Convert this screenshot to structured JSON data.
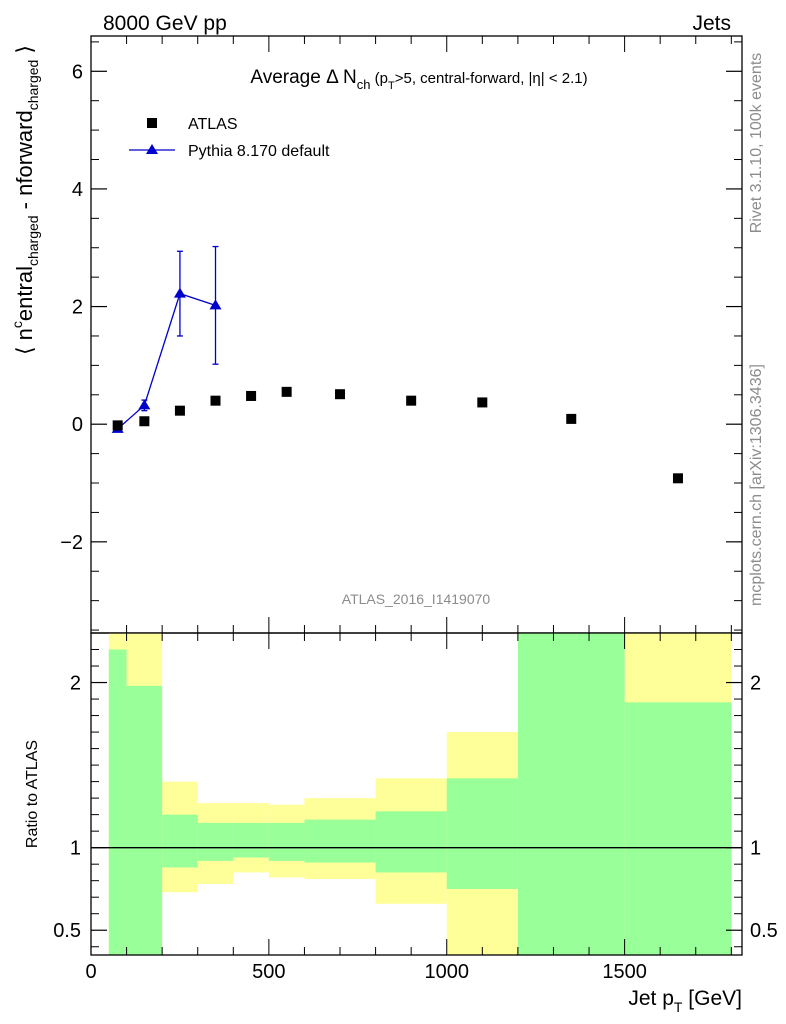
{
  "header": {
    "left": "8000 GeV pp",
    "right": "Jets"
  },
  "side_labels": {
    "rivet": "Rivet 3.1.10,  100k events",
    "mcplots": "mcplots.cern.ch [arXiv:1306.3436]"
  },
  "chart_data": [
    {
      "type": "scatter",
      "title_main": "Average Δ N",
      "title_sub": "ch",
      "title_rest": " (p",
      "title_sub2": "T",
      "title_tail": ">5, central-forward, |η| < 2.1)",
      "ylabel": "⟨ n^central_charged - n^forward_charged ⟩",
      "ylabel_parts": [
        "⟨ n",
        "c",
        "entral",
        "charged",
        " - n",
        "forward",
        "charged",
        " ⟩"
      ],
      "watermark": "ATLAS_2016_I1419070",
      "xlim": [
        0,
        1830
      ],
      "ylim": [
        -3.55,
        6.6
      ],
      "yticks": [
        -2,
        0,
        2,
        4,
        6
      ],
      "ytick_labels": [
        "−2",
        "0",
        "2",
        "4",
        "6"
      ],
      "legend_position": "top-left",
      "series": [
        {
          "name": "ATLAS",
          "marker": "square",
          "color": "#000000",
          "x": [
            75,
            150,
            250,
            350,
            450,
            550,
            700,
            900,
            1100,
            1350,
            1650
          ],
          "y": [
            -0.02,
            0.05,
            0.23,
            0.4,
            0.48,
            0.55,
            0.51,
            0.4,
            0.37,
            0.09,
            -0.92
          ]
        },
        {
          "name": "Pythia 8.170 default",
          "marker": "triangle",
          "color": "#0000cc",
          "x": [
            75,
            150,
            250,
            350
          ],
          "y": [
            -0.08,
            0.32,
            2.22,
            2.02
          ],
          "yerr": [
            0.04,
            0.09,
            0.72,
            1.0
          ]
        }
      ]
    },
    {
      "type": "area",
      "ylabel": "Ratio to ATLAS",
      "xlabel": "Jet p",
      "xlabel_sub": "T",
      "xlabel_unit": " [GeV]",
      "xlim": [
        0,
        1830
      ],
      "ylim": [
        0.35,
        2.3
      ],
      "xticks": [
        0,
        500,
        1000,
        1500
      ],
      "xtick_labels": [
        "0",
        "500",
        "1000",
        "1500"
      ],
      "yticks": [
        0.5,
        1,
        2
      ],
      "ytick_labels": [
        "0.5",
        "1",
        "2"
      ],
      "colors": {
        "yellow": "#ffff99",
        "green": "#99ff99"
      },
      "bins": [
        {
          "lo": 50,
          "hi": 100,
          "yellow": [
            0.35,
            2.3
          ],
          "green": [
            0.35,
            2.2
          ]
        },
        {
          "lo": 100,
          "hi": 200,
          "yellow": [
            0.35,
            2.3
          ],
          "green": [
            0.35,
            1.98
          ]
        },
        {
          "lo": 200,
          "hi": 300,
          "yellow": [
            0.73,
            1.4
          ],
          "green": [
            0.88,
            1.2
          ]
        },
        {
          "lo": 300,
          "hi": 400,
          "yellow": [
            0.78,
            1.27
          ],
          "green": [
            0.92,
            1.15
          ]
        },
        {
          "lo": 400,
          "hi": 500,
          "yellow": [
            0.85,
            1.27
          ],
          "green": [
            0.94,
            1.15
          ]
        },
        {
          "lo": 500,
          "hi": 600,
          "yellow": [
            0.82,
            1.26
          ],
          "green": [
            0.92,
            1.15
          ]
        },
        {
          "lo": 600,
          "hi": 800,
          "yellow": [
            0.81,
            1.3
          ],
          "green": [
            0.91,
            1.17
          ]
        },
        {
          "lo": 800,
          "hi": 1000,
          "yellow": [
            0.66,
            1.42
          ],
          "green": [
            0.85,
            1.22
          ]
        },
        {
          "lo": 1000,
          "hi": 1200,
          "yellow": [
            0.35,
            1.7
          ],
          "green": [
            0.75,
            1.42
          ]
        },
        {
          "lo": 1200,
          "hi": 1500,
          "yellow": [
            0.35,
            2.3
          ],
          "green": [
            0.35,
            2.3
          ]
        },
        {
          "lo": 1500,
          "hi": 1800,
          "yellow": [
            0.35,
            2.3
          ],
          "green": [
            0.35,
            1.88
          ]
        }
      ],
      "reference": 1
    }
  ]
}
